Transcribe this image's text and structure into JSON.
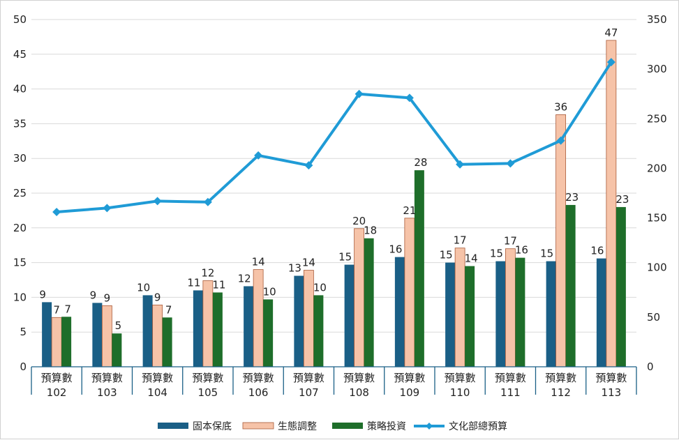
{
  "chart_data": {
    "type": "bar",
    "categories": [
      [
        "預算數",
        "102"
      ],
      [
        "預算數",
        "103"
      ],
      [
        "預算數",
        "104"
      ],
      [
        "預算數",
        "105"
      ],
      [
        "預算數",
        "106"
      ],
      [
        "預算數",
        "107"
      ],
      [
        "預算數",
        "108"
      ],
      [
        "預算數",
        "109"
      ],
      [
        "預算數",
        "110"
      ],
      [
        "預算數",
        "111"
      ],
      [
        "預算數",
        "112"
      ],
      [
        "預算數",
        "113"
      ]
    ],
    "series": [
      {
        "name": "固本保底",
        "type": "bar",
        "axis": "left",
        "color": "#1a5f86",
        "values": [
          9.3,
          9.2,
          10.3,
          11.0,
          11.6,
          13.1,
          14.7,
          15.8,
          15.0,
          15.2,
          15.2,
          15.6
        ],
        "labels": [
          "9",
          "9",
          "10",
          "11",
          "12",
          "13",
          "15",
          "16",
          "15",
          "15",
          "15",
          "16"
        ]
      },
      {
        "name": "生態調整",
        "type": "bar",
        "axis": "left",
        "color": "#f6c3a8",
        "values": [
          7.1,
          8.8,
          8.9,
          12.4,
          14.0,
          13.9,
          19.9,
          21.4,
          17.1,
          17.0,
          36.3,
          47.0
        ],
        "labels": [
          "7",
          "9",
          "9",
          "12",
          "14",
          "14",
          "20",
          "21",
          "17",
          "17",
          "36",
          "47"
        ]
      },
      {
        "name": "策略投資",
        "type": "bar",
        "axis": "left",
        "color": "#1e6e2a",
        "values": [
          7.2,
          4.8,
          7.1,
          10.7,
          9.7,
          10.3,
          18.5,
          28.3,
          14.5,
          15.7,
          23.3,
          23.0
        ],
        "labels": [
          "7",
          "5",
          "7",
          "11",
          "10",
          "10",
          "18",
          "28",
          "14",
          "16",
          "23",
          "23"
        ]
      },
      {
        "name": "文化部總預算",
        "type": "line",
        "axis": "right",
        "color": "#1f9bd6",
        "values": [
          156,
          160,
          167,
          166,
          213,
          203,
          275,
          271,
          204,
          205,
          228,
          307
        ]
      }
    ],
    "y_left": {
      "min": 0,
      "max": 50,
      "step": 5
    },
    "y_right": {
      "min": 0,
      "max": 350,
      "step": 50
    },
    "grid": true,
    "legend": "bottom",
    "title": "",
    "xlabel": "",
    "ylabel": ""
  }
}
